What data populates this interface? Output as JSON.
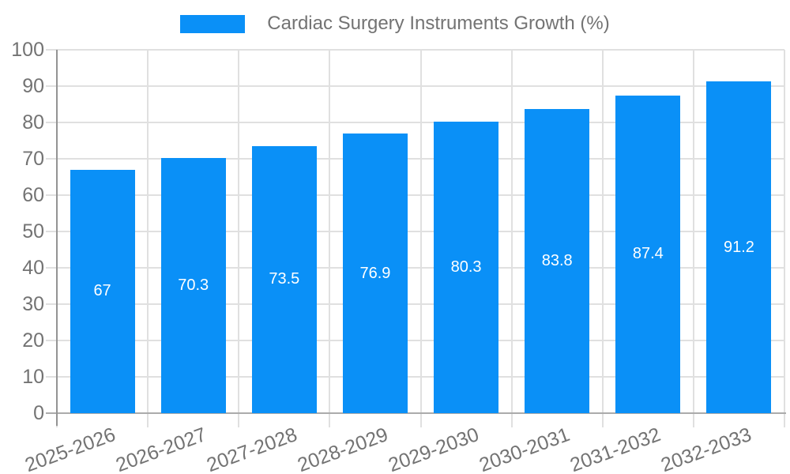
{
  "chart_data": {
    "type": "bar",
    "title": "",
    "legend": {
      "position": "top-center",
      "entries": [
        {
          "label": "Cardiac Surgery Instruments Growth (%)",
          "color": "#0a90f7"
        }
      ]
    },
    "categories": [
      "2025-2026",
      "2026-2027",
      "2027-2028",
      "2028-2029",
      "2029-2030",
      "2030-2031",
      "2031-2032",
      "2032-2033"
    ],
    "values": [
      67,
      70.3,
      73.5,
      76.9,
      80.3,
      83.8,
      87.4,
      91.2
    ],
    "value_labels": [
      "67",
      "70.3",
      "73.5",
      "76.9",
      "80.3",
      "83.8",
      "87.4",
      "91.2"
    ],
    "xlabel": "",
    "ylabel": "",
    "ylim": [
      0,
      100
    ],
    "yticks": [
      0,
      10,
      20,
      30,
      40,
      50,
      60,
      70,
      80,
      90,
      100
    ],
    "grid": "on",
    "x_tick_rotation_deg": -20,
    "colors": {
      "bar": "#0a90f7",
      "value_label": "#ffffff",
      "grid": "#e0e0e0",
      "axis_y": "#949494",
      "axis_x": "#ababab",
      "tick_text": "#737373",
      "legend_text": "#737373",
      "background": "#ffffff"
    }
  }
}
